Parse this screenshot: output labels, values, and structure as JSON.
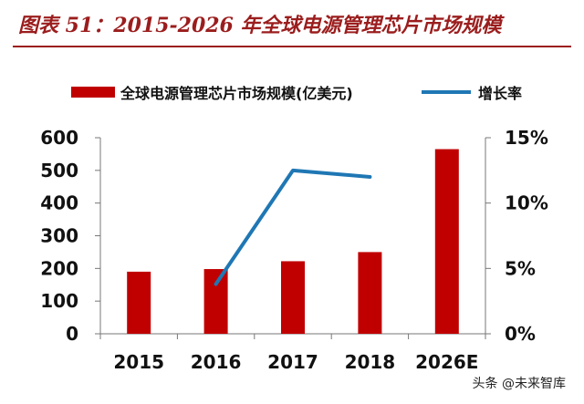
{
  "title": "图表 51：2015-2026 年全球电源管理芯片市场规模",
  "watermark": "头条 @未来智库",
  "chart_data": {
    "type": "bar",
    "categories": [
      "2015",
      "2016",
      "2017",
      "2018",
      "2026E"
    ],
    "series": [
      {
        "name": "全球电源管理芯片市场规模(亿美元)",
        "type": "bar",
        "axis": "left",
        "values": [
          190,
          198,
          222,
          250,
          565
        ]
      },
      {
        "name": "增长率",
        "type": "line",
        "axis": "right",
        "values": [
          null,
          3.8,
          12.5,
          12.0,
          null
        ]
      }
    ],
    "y_left": {
      "min": 0,
      "max": 600,
      "ticks": [
        "0",
        "100",
        "200",
        "300",
        "400",
        "500",
        "600"
      ]
    },
    "y_right": {
      "min": 0,
      "max": 15,
      "ticks": [
        "0%",
        "5%",
        "10%",
        "15%"
      ]
    },
    "grid": false,
    "legend_position": "top",
    "colors": {
      "bar": "#c00000",
      "line": "#1f77b4",
      "title": "#9b1d1d"
    }
  }
}
